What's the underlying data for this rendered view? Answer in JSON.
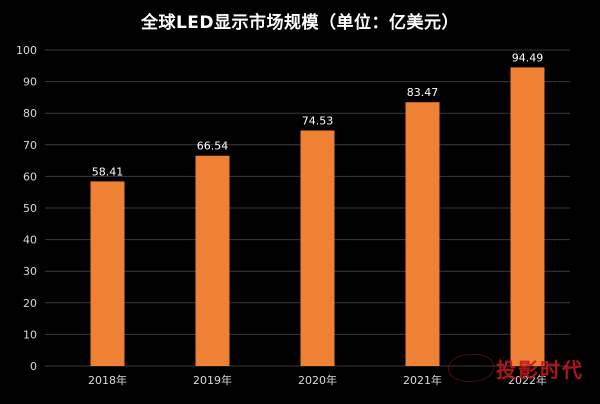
{
  "chart_data": {
    "type": "bar",
    "title": "全球LED显示市场规模（单位：亿美元）",
    "categories": [
      "2018年",
      "2019年",
      "2020年",
      "2021年",
      "2022年"
    ],
    "values": [
      58.41,
      66.54,
      74.53,
      83.47,
      94.49
    ],
    "value_labels": [
      "58.41",
      "66.54",
      "74.53",
      "83.47",
      "94.49"
    ],
    "ylim": [
      0,
      100
    ],
    "yticks": [
      0,
      10,
      20,
      30,
      40,
      50,
      60,
      70,
      80,
      90,
      100
    ],
    "grid": true,
    "legend": "none",
    "colors": {
      "background": "#000000",
      "bar": "#ee8133",
      "grid": "#3a3a3a",
      "text": "#ffffff",
      "axis_text": "#d9d9d9"
    }
  },
  "watermark": {
    "text": "投影时代",
    "color": "#c0181c"
  }
}
